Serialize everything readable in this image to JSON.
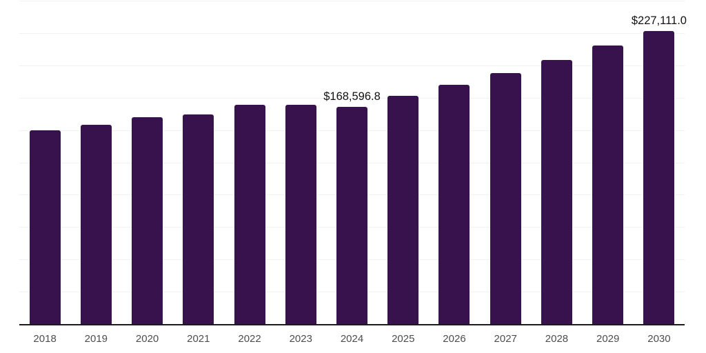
{
  "chart_data": {
    "type": "bar",
    "title": "",
    "xlabel": "",
    "ylabel": "",
    "categories": [
      "2018",
      "2019",
      "2020",
      "2021",
      "2022",
      "2023",
      "2024",
      "2025",
      "2026",
      "2027",
      "2028",
      "2029",
      "2030"
    ],
    "values": [
      150400,
      154800,
      160300,
      162400,
      170000,
      170000,
      168596.8,
      176800,
      185700,
      194500,
      204600,
      215900,
      227111.0
    ],
    "point_labels": {
      "2024": "$168,596.8",
      "2030": "$227,111.0"
    },
    "ylim": [
      0,
      250000
    ],
    "gridline_step": 25000,
    "grid": "horizontal",
    "legend": "none",
    "colors": {
      "bar": "#38124c",
      "axis_line": "#1a1a1a",
      "gridline": "#f2f2f2",
      "tick_label": "#4d4d4d",
      "data_label": "#111111",
      "background": "#ffffff"
    }
  }
}
